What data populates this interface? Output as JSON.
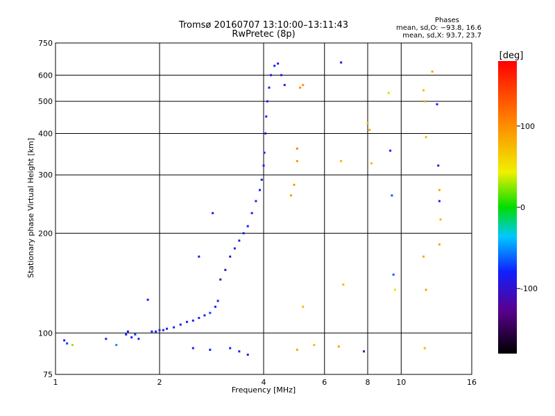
{
  "chart_data": {
    "type": "scatter",
    "title": "Tromsø 20160707 13:10:00–13:11:43",
    "subtitle": "RwPretec (8p)",
    "xlabel": "Frequency [MHz]",
    "ylabel": "Stationary phase Virtual Height [km]",
    "x_scale": "log",
    "y_scale": "log",
    "xlim": [
      1,
      16
    ],
    "ylim": [
      75,
      750
    ],
    "x_ticks": [
      1,
      2,
      4,
      6,
      8,
      10,
      16
    ],
    "y_ticks": [
      75,
      100,
      200,
      300,
      400,
      500,
      600,
      750
    ],
    "grid": true,
    "phases": {
      "heading": "Phases",
      "o_stats": "mean, sd,O: −93.8, 16.6",
      "x_stats": "mean, sd,X:  93.7, 23.7"
    },
    "colorbar": {
      "label": "[deg]",
      "range": [
        -180,
        180
      ],
      "ticks": [
        100,
        0,
        -100
      ]
    },
    "series": [
      {
        "points": [
          [
            1.06,
            95,
            -100
          ],
          [
            1.08,
            93,
            -90
          ],
          [
            1.12,
            92,
            30
          ],
          [
            1.4,
            96,
            -100
          ],
          [
            1.5,
            92,
            -60
          ],
          [
            1.6,
            99,
            -100
          ],
          [
            1.62,
            101,
            -110
          ],
          [
            1.66,
            97,
            -100
          ],
          [
            1.7,
            99,
            -90
          ],
          [
            1.74,
            96,
            -100
          ],
          [
            1.85,
            126,
            -100
          ],
          [
            1.9,
            101,
            -100
          ],
          [
            1.95,
            101,
            -100
          ],
          [
            2.0,
            102,
            -100
          ],
          [
            2.05,
            102,
            -110
          ],
          [
            2.1,
            103,
            -100
          ],
          [
            2.2,
            104,
            -100
          ],
          [
            2.3,
            106,
            -100
          ],
          [
            2.4,
            108,
            -100
          ],
          [
            2.5,
            109,
            -100
          ],
          [
            2.6,
            111,
            -100
          ],
          [
            2.7,
            113,
            -100
          ],
          [
            2.8,
            115,
            -90
          ],
          [
            2.9,
            120,
            -100
          ],
          [
            2.95,
            125,
            -100
          ],
          [
            2.6,
            170,
            -100
          ],
          [
            2.85,
            230,
            -110
          ],
          [
            3.0,
            145,
            -130
          ],
          [
            3.1,
            155,
            -130
          ],
          [
            3.2,
            170,
            -120
          ],
          [
            3.3,
            180,
            -100
          ],
          [
            3.4,
            190,
            -110
          ],
          [
            3.5,
            200,
            -100
          ],
          [
            3.6,
            210,
            -100
          ],
          [
            3.7,
            230,
            -100
          ],
          [
            3.8,
            250,
            -100
          ],
          [
            3.9,
            270,
            -100
          ],
          [
            3.95,
            290,
            -100
          ],
          [
            4.0,
            320,
            -100
          ],
          [
            4.02,
            350,
            -100
          ],
          [
            4.05,
            400,
            -100
          ],
          [
            4.07,
            450,
            -100
          ],
          [
            4.1,
            500,
            -100
          ],
          [
            4.15,
            550,
            -100
          ],
          [
            4.2,
            600,
            -100
          ],
          [
            4.3,
            640,
            -100
          ],
          [
            4.4,
            650,
            -100
          ],
          [
            4.5,
            600,
            -100
          ],
          [
            4.6,
            560,
            -100
          ],
          [
            3.2,
            90,
            -100
          ],
          [
            3.4,
            88,
            -100
          ],
          [
            3.6,
            86,
            -110
          ],
          [
            2.8,
            89,
            -100
          ],
          [
            2.5,
            90,
            -100
          ],
          [
            4.8,
            260,
            100
          ],
          [
            4.9,
            280,
            100
          ],
          [
            5.0,
            330,
            100
          ],
          [
            5.0,
            360,
            110
          ],
          [
            5.1,
            550,
            100
          ],
          [
            5.2,
            560,
            100
          ],
          [
            5.2,
            120,
            80
          ],
          [
            5.0,
            89,
            90
          ],
          [
            5.6,
            92,
            80
          ],
          [
            6.6,
            91,
            90
          ],
          [
            6.7,
            655,
            -110
          ],
          [
            6.7,
            330,
            80
          ],
          [
            6.8,
            140,
            80
          ],
          [
            7.8,
            88,
            -140
          ],
          [
            8.0,
            430,
            80
          ],
          [
            8.1,
            410,
            90
          ],
          [
            8.2,
            325,
            80
          ],
          [
            9.2,
            530,
            40
          ],
          [
            9.3,
            355,
            -100
          ],
          [
            9.4,
            260,
            -80
          ],
          [
            9.5,
            150,
            -80
          ],
          [
            9.6,
            135,
            60
          ],
          [
            11.6,
            540,
            80
          ],
          [
            11.7,
            500,
            90
          ],
          [
            11.8,
            390,
            80
          ],
          [
            11.7,
            90,
            80
          ],
          [
            11.8,
            135,
            90
          ],
          [
            11.6,
            170,
            90
          ],
          [
            12.7,
            490,
            -100
          ],
          [
            12.8,
            320,
            -100
          ],
          [
            12.9,
            270,
            90
          ],
          [
            12.9,
            250,
            -100
          ],
          [
            13.0,
            220,
            80
          ],
          [
            12.9,
            185,
            90
          ],
          [
            12.3,
            615,
            90
          ]
        ]
      }
    ]
  }
}
